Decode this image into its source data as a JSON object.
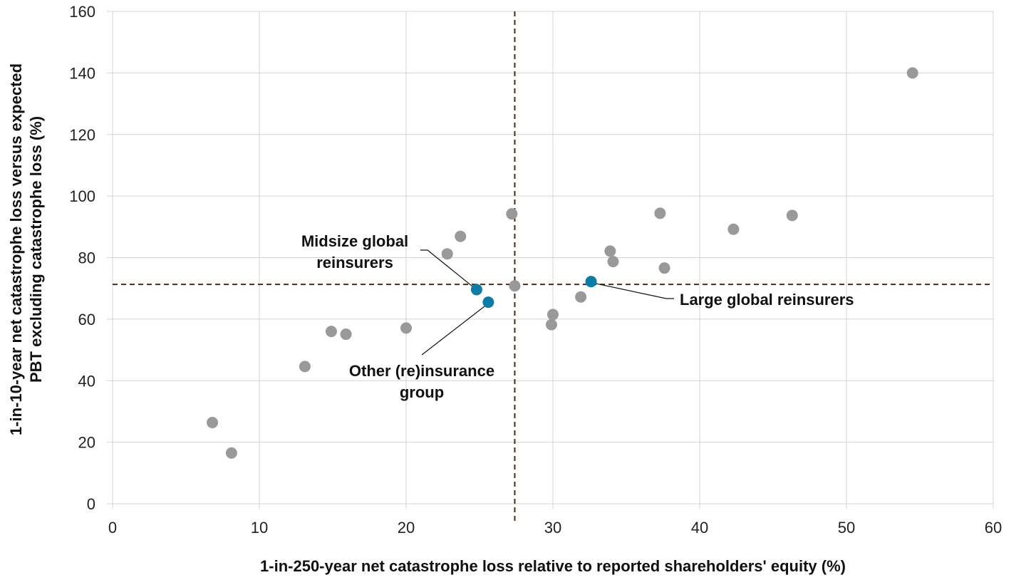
{
  "chart_data": {
    "type": "scatter",
    "xlabel": "1-in-250-year net catastrophe loss relative to reported shareholders' equity (%)",
    "ylabel_lines": [
      "1-in-10-year net catastrophe loss versus expected",
      "PBT excluding catastrophe loss (%)"
    ],
    "xlim": [
      0,
      60
    ],
    "ylim": [
      0,
      160
    ],
    "x_ticks": [
      0,
      10,
      20,
      30,
      40,
      50,
      60
    ],
    "y_ticks": [
      0,
      20,
      40,
      60,
      80,
      100,
      120,
      140,
      160
    ],
    "grid": true,
    "reference_lines": {
      "x": 27.4,
      "y": 71.3,
      "color": "#4a2a1a",
      "style": "dashed"
    },
    "colors": {
      "other": "#999999",
      "highlight": "#0a7ca6"
    },
    "points": [
      {
        "x": 6.8,
        "y": 26.4
      },
      {
        "x": 8.1,
        "y": 16.5
      },
      {
        "x": 13.1,
        "y": 44.6
      },
      {
        "x": 14.9,
        "y": 56.0
      },
      {
        "x": 15.9,
        "y": 55.1
      },
      {
        "x": 20.0,
        "y": 57.1
      },
      {
        "x": 22.8,
        "y": 81.2
      },
      {
        "x": 23.7,
        "y": 86.9
      },
      {
        "x": 27.2,
        "y": 94.2
      },
      {
        "x": 27.4,
        "y": 70.8
      },
      {
        "x": 29.9,
        "y": 58.2
      },
      {
        "x": 30.0,
        "y": 61.5
      },
      {
        "x": 31.9,
        "y": 67.2
      },
      {
        "x": 33.9,
        "y": 82.1
      },
      {
        "x": 34.1,
        "y": 78.7
      },
      {
        "x": 37.3,
        "y": 94.4
      },
      {
        "x": 37.6,
        "y": 76.6
      },
      {
        "x": 42.3,
        "y": 89.2
      },
      {
        "x": 46.3,
        "y": 93.7
      },
      {
        "x": 54.5,
        "y": 140.0
      },
      {
        "x": 24.8,
        "y": 69.6,
        "highlight": true
      },
      {
        "x": 25.6,
        "y": 65.5,
        "highlight": true
      },
      {
        "x": 32.6,
        "y": 72.2,
        "highlight": true
      }
    ],
    "annotations": [
      {
        "lines": [
          "Midsize global",
          "reinsurers"
        ],
        "x": 24.8,
        "y": 69.6
      },
      {
        "lines": [
          "Other (re)insurance",
          "group"
        ],
        "x": 25.6,
        "y": 65.5
      },
      {
        "lines": [
          "Large global reinsurers"
        ],
        "x": 32.6,
        "y": 72.2
      }
    ]
  }
}
